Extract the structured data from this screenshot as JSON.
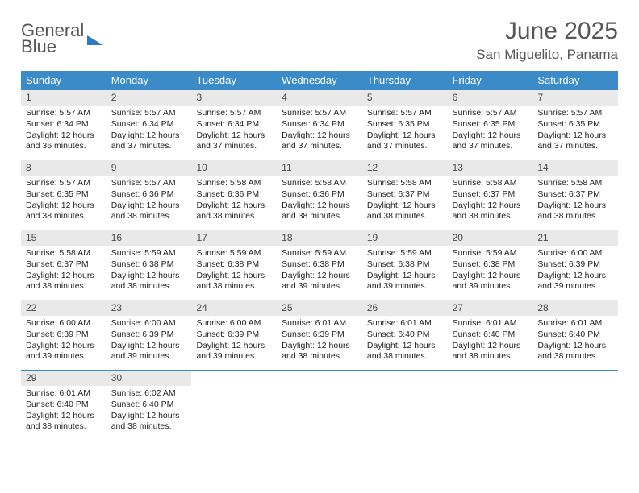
{
  "logo": {
    "line1": "General",
    "line2": "Blue"
  },
  "title": {
    "month": "June 2025",
    "location": "San Miguelito, Panama"
  },
  "colors": {
    "header_bg": "#3b8bc9",
    "header_text": "#ffffff",
    "daynum_bg": "#e9e9e9",
    "rule": "#3b8bc9",
    "title_color": "#575757",
    "logo_gray": "#565656",
    "logo_blue": "#2f7ac0"
  },
  "dow": [
    "Sunday",
    "Monday",
    "Tuesday",
    "Wednesday",
    "Thursday",
    "Friday",
    "Saturday"
  ],
  "days": [
    {
      "n": "1",
      "sr": "5:57 AM",
      "ss": "6:34 PM",
      "dl": "12 hours and 36 minutes."
    },
    {
      "n": "2",
      "sr": "5:57 AM",
      "ss": "6:34 PM",
      "dl": "12 hours and 37 minutes."
    },
    {
      "n": "3",
      "sr": "5:57 AM",
      "ss": "6:34 PM",
      "dl": "12 hours and 37 minutes."
    },
    {
      "n": "4",
      "sr": "5:57 AM",
      "ss": "6:34 PM",
      "dl": "12 hours and 37 minutes."
    },
    {
      "n": "5",
      "sr": "5:57 AM",
      "ss": "6:35 PM",
      "dl": "12 hours and 37 minutes."
    },
    {
      "n": "6",
      "sr": "5:57 AM",
      "ss": "6:35 PM",
      "dl": "12 hours and 37 minutes."
    },
    {
      "n": "7",
      "sr": "5:57 AM",
      "ss": "6:35 PM",
      "dl": "12 hours and 37 minutes."
    },
    {
      "n": "8",
      "sr": "5:57 AM",
      "ss": "6:35 PM",
      "dl": "12 hours and 38 minutes."
    },
    {
      "n": "9",
      "sr": "5:57 AM",
      "ss": "6:36 PM",
      "dl": "12 hours and 38 minutes."
    },
    {
      "n": "10",
      "sr": "5:58 AM",
      "ss": "6:36 PM",
      "dl": "12 hours and 38 minutes."
    },
    {
      "n": "11",
      "sr": "5:58 AM",
      "ss": "6:36 PM",
      "dl": "12 hours and 38 minutes."
    },
    {
      "n": "12",
      "sr": "5:58 AM",
      "ss": "6:37 PM",
      "dl": "12 hours and 38 minutes."
    },
    {
      "n": "13",
      "sr": "5:58 AM",
      "ss": "6:37 PM",
      "dl": "12 hours and 38 minutes."
    },
    {
      "n": "14",
      "sr": "5:58 AM",
      "ss": "6:37 PM",
      "dl": "12 hours and 38 minutes."
    },
    {
      "n": "15",
      "sr": "5:58 AM",
      "ss": "6:37 PM",
      "dl": "12 hours and 38 minutes."
    },
    {
      "n": "16",
      "sr": "5:59 AM",
      "ss": "6:38 PM",
      "dl": "12 hours and 38 minutes."
    },
    {
      "n": "17",
      "sr": "5:59 AM",
      "ss": "6:38 PM",
      "dl": "12 hours and 38 minutes."
    },
    {
      "n": "18",
      "sr": "5:59 AM",
      "ss": "6:38 PM",
      "dl": "12 hours and 39 minutes."
    },
    {
      "n": "19",
      "sr": "5:59 AM",
      "ss": "6:38 PM",
      "dl": "12 hours and 39 minutes."
    },
    {
      "n": "20",
      "sr": "5:59 AM",
      "ss": "6:38 PM",
      "dl": "12 hours and 39 minutes."
    },
    {
      "n": "21",
      "sr": "6:00 AM",
      "ss": "6:39 PM",
      "dl": "12 hours and 39 minutes."
    },
    {
      "n": "22",
      "sr": "6:00 AM",
      "ss": "6:39 PM",
      "dl": "12 hours and 39 minutes."
    },
    {
      "n": "23",
      "sr": "6:00 AM",
      "ss": "6:39 PM",
      "dl": "12 hours and 39 minutes."
    },
    {
      "n": "24",
      "sr": "6:00 AM",
      "ss": "6:39 PM",
      "dl": "12 hours and 39 minutes."
    },
    {
      "n": "25",
      "sr": "6:01 AM",
      "ss": "6:39 PM",
      "dl": "12 hours and 38 minutes."
    },
    {
      "n": "26",
      "sr": "6:01 AM",
      "ss": "6:40 PM",
      "dl": "12 hours and 38 minutes."
    },
    {
      "n": "27",
      "sr": "6:01 AM",
      "ss": "6:40 PM",
      "dl": "12 hours and 38 minutes."
    },
    {
      "n": "28",
      "sr": "6:01 AM",
      "ss": "6:40 PM",
      "dl": "12 hours and 38 minutes."
    },
    {
      "n": "29",
      "sr": "6:01 AM",
      "ss": "6:40 PM",
      "dl": "12 hours and 38 minutes."
    },
    {
      "n": "30",
      "sr": "6:02 AM",
      "ss": "6:40 PM",
      "dl": "12 hours and 38 minutes."
    }
  ],
  "labels": {
    "sunrise": "Sunrise:",
    "sunset": "Sunset:",
    "daylight": "Daylight:"
  },
  "layout": {
    "start_dow": 0,
    "total_cells": 35
  }
}
